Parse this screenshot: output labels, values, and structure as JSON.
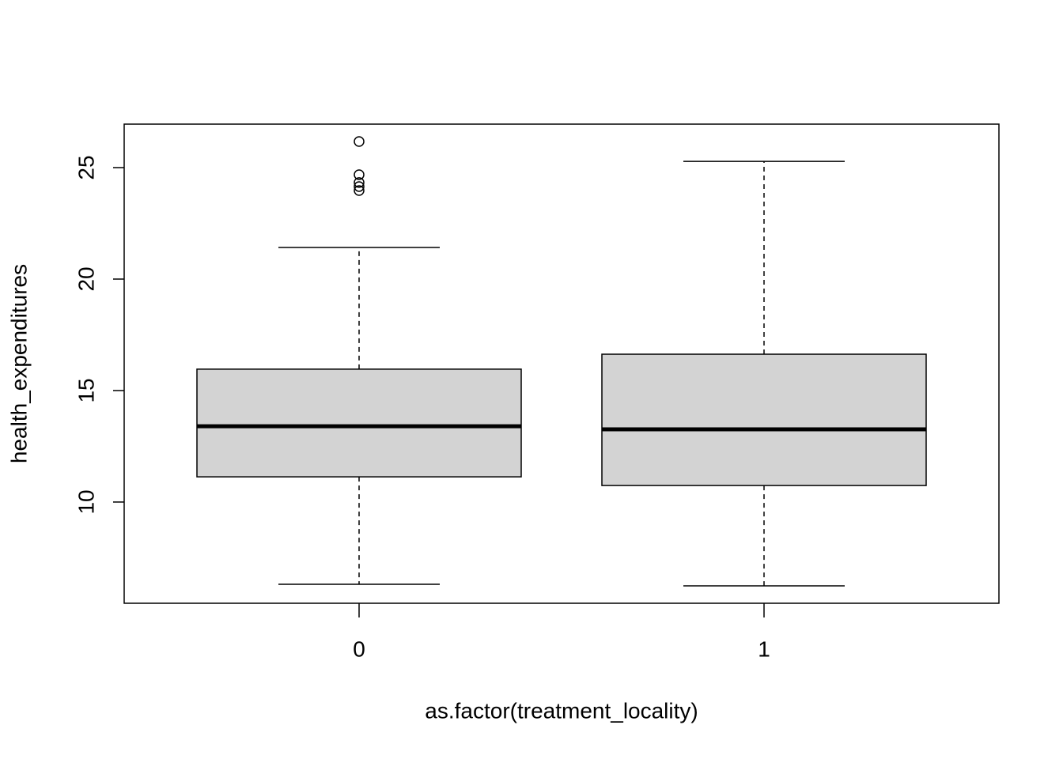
{
  "chart_data": {
    "type": "boxplot",
    "x_label": "as.factor(treatment_locality)",
    "y_label": "health_expenditures",
    "categories": [
      "0",
      "1"
    ],
    "color": "#d3d3d3",
    "boxes": [
      {
        "whisker_low": 6.31,
        "q1": 11.13,
        "median": 13.4,
        "q3": 15.96,
        "whisker_high": 21.42,
        "outliers": [
          26.17,
          24.68,
          24.33,
          24.15,
          23.97
        ]
      },
      {
        "whisker_low": 6.24,
        "q1": 10.74,
        "median": 13.26,
        "q3": 16.63,
        "whisker_high": 25.28,
        "outliers": []
      }
    ],
    "ylim": [
      5.46,
      26.95
    ],
    "yticks": [
      10,
      15,
      20,
      25
    ]
  }
}
